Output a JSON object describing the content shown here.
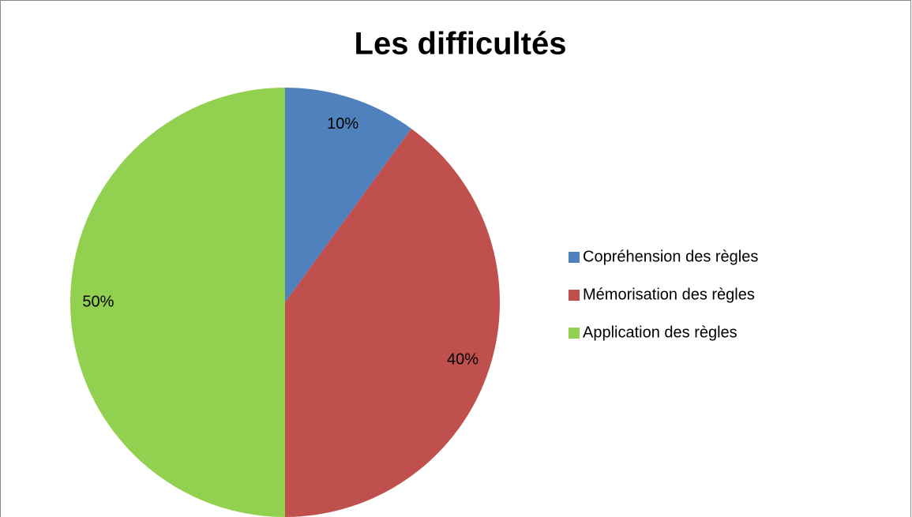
{
  "chart_data": {
    "type": "pie",
    "title": "Les difficultés",
    "categories": [
      "Copréhension des règles",
      "Mémorisation des règles",
      "Application des règles"
    ],
    "values": [
      10,
      40,
      50
    ],
    "value_labels": [
      "10%",
      "40%",
      "50%"
    ],
    "colors": [
      "#4f81bd",
      "#c0504d",
      "#92d050"
    ],
    "legend": "right"
  }
}
